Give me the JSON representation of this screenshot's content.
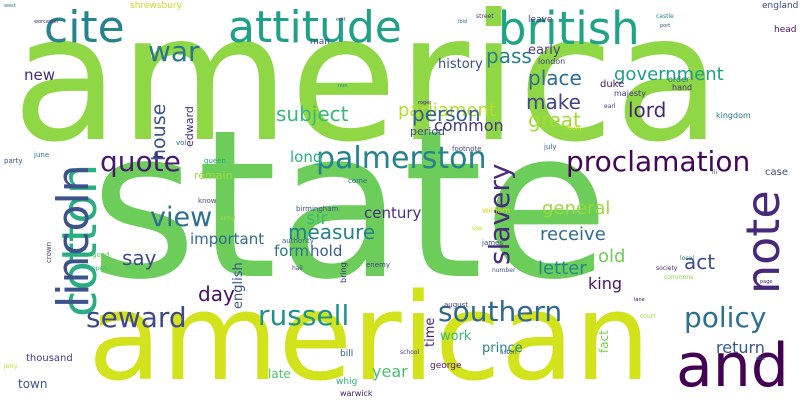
{
  "words": [
    {
      "text": "america",
      "color": "#8fd744"
    },
    {
      "text": "state",
      "color": "#6ccd5a"
    },
    {
      "text": "american",
      "color": "#d2e21b"
    },
    {
      "text": "attitude",
      "color": "#1fa088"
    },
    {
      "text": "british",
      "color": "#20a486"
    },
    {
      "text": "cite",
      "color": "#25848e"
    },
    {
      "text": "and",
      "color": "#440154"
    },
    {
      "text": "cotton",
      "color": "#28ae80"
    },
    {
      "text": "lincoln",
      "color": "#3b528b"
    },
    {
      "text": "note",
      "color": "#482878"
    },
    {
      "text": "palmerston",
      "color": "#26828e"
    },
    {
      "text": "proclamation",
      "color": "#46075a"
    },
    {
      "text": "war",
      "color": "#2a788e"
    },
    {
      "text": "quote",
      "color": "#481b6d"
    },
    {
      "text": "view",
      "color": "#2d708e"
    },
    {
      "text": "slavery",
      "color": "#472c7a"
    },
    {
      "text": "russell",
      "color": "#20928c"
    },
    {
      "text": "southern",
      "color": "#31688e"
    },
    {
      "text": "policy",
      "color": "#2c728e"
    },
    {
      "text": "seward",
      "color": "#3e4989"
    },
    {
      "text": "pass",
      "color": "#287d8e"
    },
    {
      "text": "parliament",
      "color": "#b5de2b"
    },
    {
      "text": "place",
      "color": "#2e6e8e"
    },
    {
      "text": "government",
      "color": "#1f9e89"
    },
    {
      "text": "make",
      "color": "#414487"
    },
    {
      "text": "person",
      "color": "#355f8d"
    },
    {
      "text": "common",
      "color": "#453882"
    },
    {
      "text": "great",
      "color": "#a5db36"
    },
    {
      "text": "lord",
      "color": "#482677"
    },
    {
      "text": "subject",
      "color": "#37b878"
    },
    {
      "text": "house",
      "color": "#3a548c"
    },
    {
      "text": "general",
      "color": "#9bd93c"
    },
    {
      "text": "receive",
      "color": "#2f6c8e"
    },
    {
      "text": "measure",
      "color": "#26818e"
    },
    {
      "text": "sir",
      "color": "#3fbc73"
    },
    {
      "text": "act",
      "color": "#3e4c8a"
    },
    {
      "text": "letter",
      "color": "#23888e"
    },
    {
      "text": "old",
      "color": "#6ece58"
    },
    {
      "text": "say",
      "color": "#3d4d8a"
    },
    {
      "text": "day",
      "color": "#471164"
    },
    {
      "text": "king",
      "color": "#481467"
    },
    {
      "text": "year",
      "color": "#4ac16d"
    },
    {
      "text": "return",
      "color": "#38588c"
    },
    {
      "text": "long",
      "color": "#2ab07f"
    },
    {
      "text": "century",
      "color": "#472f7d"
    },
    {
      "text": "new",
      "color": "#472d7b"
    },
    {
      "text": "form",
      "color": "#2c738e"
    },
    {
      "text": "hold",
      "color": "#365c8d"
    },
    {
      "text": "important",
      "color": "#2f6b8e"
    },
    {
      "text": "english",
      "color": "#39568c"
    },
    {
      "text": "history",
      "color": "#3b518b"
    },
    {
      "text": "early",
      "color": "#433e85"
    },
    {
      "text": "edward",
      "color": "#46337f"
    },
    {
      "text": "remain",
      "color": "#a2da37"
    },
    {
      "text": "work",
      "color": "#3aba76"
    },
    {
      "text": "time",
      "color": "#482576"
    },
    {
      "text": "prince",
      "color": "#25838e"
    },
    {
      "text": "fact",
      "color": "#7ad151"
    },
    {
      "text": "late",
      "color": "#50c46a"
    },
    {
      "text": "town",
      "color": "#3a548c"
    },
    {
      "text": "thousand",
      "color": "#443a83"
    },
    {
      "text": "bill",
      "color": "#34608d"
    },
    {
      "text": "period",
      "color": "#3e4a89"
    },
    {
      "text": "duke",
      "color": "#481a6c"
    },
    {
      "text": "majesty",
      "color": "#443b84"
    },
    {
      "text": "case",
      "color": "#3f4889"
    },
    {
      "text": "william",
      "color": "#d2e21b"
    },
    {
      "text": "london",
      "color": "#424086"
    },
    {
      "text": "shrewsbury",
      "color": "#c2df23"
    },
    {
      "text": "england",
      "color": "#3e4989"
    },
    {
      "text": "leave",
      "color": "#433e85"
    },
    {
      "text": "head",
      "color": "#481668"
    },
    {
      "text": "man",
      "color": "#3e4c8a"
    },
    {
      "text": "order",
      "color": "#2a768e"
    },
    {
      "text": "hand",
      "color": "#46307e"
    },
    {
      "text": "kingdom",
      "color": "#2c718e"
    },
    {
      "text": "george",
      "color": "#481a6c"
    },
    {
      "text": "whig",
      "color": "#2fb47c"
    },
    {
      "text": "warwick",
      "color": "#481769"
    },
    {
      "text": "august",
      "color": "#453781"
    },
    {
      "text": "school",
      "color": "#433d84"
    },
    {
      "text": "aston",
      "color": "#32648e"
    },
    {
      "text": "james",
      "color": "#3d4e8a"
    },
    {
      "text": "bring",
      "color": "#472a7a"
    },
    {
      "text": "enemy",
      "color": "#414287"
    },
    {
      "text": "number",
      "color": "#3b528b"
    },
    {
      "text": "come",
      "color": "#2e6f8e"
    },
    {
      "text": "birmingham",
      "color": "#3c4f8a"
    },
    {
      "text": "authority",
      "color": "#33628d"
    },
    {
      "text": "hall",
      "color": "#3e4989"
    },
    {
      "text": "queen",
      "color": "#22a884"
    },
    {
      "text": "june",
      "color": "#2b748e"
    },
    {
      "text": "party",
      "color": "#3d4e8a"
    },
    {
      "text": "vol",
      "color": "#2d718e"
    },
    {
      "text": "crown",
      "color": "#414487"
    },
    {
      "text": "good",
      "color": "#60ca60"
    },
    {
      "text": "know",
      "color": "#3e4c8a"
    },
    {
      "text": "army",
      "color": "#a8db34"
    },
    {
      "text": "footnote",
      "color": "#3e4a89"
    },
    {
      "text": "july",
      "color": "#31678e"
    },
    {
      "text": "earl",
      "color": "#453781"
    },
    {
      "text": "iii",
      "color": "#3b518b"
    },
    {
      "text": "local",
      "color": "#2a788e"
    },
    {
      "text": "society",
      "color": "#482374"
    },
    {
      "text": "commons",
      "color": "#8bd646"
    },
    {
      "text": "street",
      "color": "#453882"
    },
    {
      "text": "castle",
      "color": "#23888e"
    },
    {
      "text": "open",
      "color": "#35b779"
    },
    {
      "text": "room",
      "color": "#dde318"
    },
    {
      "text": "use",
      "color": "#c8e020"
    },
    {
      "text": "court",
      "color": "#a0da39"
    },
    {
      "text": "die",
      "color": "#3d4e8a"
    },
    {
      "text": "jerry",
      "color": "#bddf26"
    },
    {
      "text": "page",
      "color": "#46337f"
    },
    {
      "text": "worcester",
      "color": "#482475"
    },
    {
      "text": "ibid",
      "color": "#2e6e8e"
    },
    {
      "text": "west",
      "color": "#2d708e"
    },
    {
      "text": "edit",
      "color": "#3b528b"
    },
    {
      "text": "roger",
      "color": "#482878"
    },
    {
      "text": "nun",
      "color": "#25848e"
    },
    {
      "text": "port",
      "color": "#3e4989"
    },
    {
      "text": "lane",
      "color": "#46085c"
    }
  ]
}
